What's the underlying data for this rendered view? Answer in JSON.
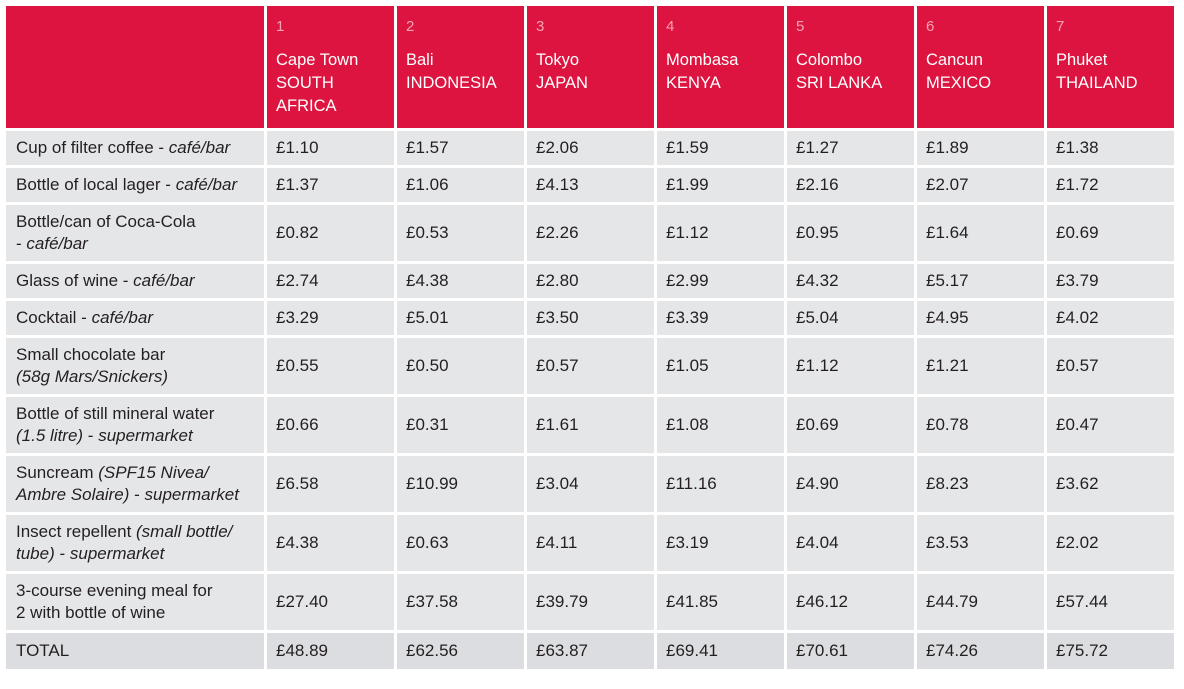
{
  "columns": [
    {
      "num": "1",
      "city": "Cape Town",
      "country": "SOUTH AFRICA"
    },
    {
      "num": "2",
      "city": "Bali",
      "country": "INDONESIA"
    },
    {
      "num": "3",
      "city": "Tokyo",
      "country": "JAPAN"
    },
    {
      "num": "4",
      "city": "Mombasa",
      "country": "KENYA"
    },
    {
      "num": "5",
      "city": "Colombo",
      "country": "SRI LANKA"
    },
    {
      "num": "6",
      "city": "Cancun",
      "country": "MEXICO"
    },
    {
      "num": "7",
      "city": "Phuket",
      "country": "THAILAND"
    }
  ],
  "rows": [
    {
      "parts": [
        {
          "t": "Cup of filter coffee - "
        },
        {
          "t": "café/bar",
          "i": true
        }
      ],
      "values": [
        "£1.10",
        "£1.57",
        "£2.06",
        "£1.59",
        "£1.27",
        "£1.89",
        "£1.38"
      ]
    },
    {
      "parts": [
        {
          "t": "Bottle of local lager - "
        },
        {
          "t": "café/bar",
          "i": true
        }
      ],
      "values": [
        "£1.37",
        "£1.06",
        "£4.13",
        "£1.99",
        "£2.16",
        "£2.07",
        "£1.72"
      ]
    },
    {
      "parts": [
        {
          "t": "Bottle/can of Coca-Cola"
        },
        {
          "br": true
        },
        {
          "t": "- "
        },
        {
          "t": "café/bar",
          "i": true
        }
      ],
      "values": [
        "£0.82",
        "£0.53",
        "£2.26",
        "£1.12",
        "£0.95",
        "£1.64",
        "£0.69"
      ]
    },
    {
      "parts": [
        {
          "t": "Glass of wine - "
        },
        {
          "t": "café/bar",
          "i": true
        }
      ],
      "values": [
        "£2.74",
        "£4.38",
        "£2.80",
        "£2.99",
        "£4.32",
        "£5.17",
        "£3.79"
      ]
    },
    {
      "parts": [
        {
          "t": "Cocktail - "
        },
        {
          "t": "café/bar",
          "i": true
        }
      ],
      "values": [
        "£3.29",
        "£5.01",
        "£3.50",
        "£3.39",
        "£5.04",
        "£4.95",
        "£4.02"
      ]
    },
    {
      "parts": [
        {
          "t": "Small chocolate bar"
        },
        {
          "br": true
        },
        {
          "t": "(58g Mars/Snickers)",
          "i": true
        }
      ],
      "values": [
        "£0.55",
        "£0.50",
        "£0.57",
        "£1.05",
        "£1.12",
        "£1.21",
        "£0.57"
      ]
    },
    {
      "parts": [
        {
          "t": "Bottle of still mineral water"
        },
        {
          "br": true
        },
        {
          "t": "(1.5 litre)",
          "i": true
        },
        {
          "t": " - "
        },
        {
          "t": "supermarket",
          "i": true
        }
      ],
      "values": [
        "£0.66",
        "£0.31",
        "£1.61",
        "£1.08",
        "£0.69",
        "£0.78",
        "£0.47"
      ]
    },
    {
      "parts": [
        {
          "t": "Suncream "
        },
        {
          "t": "(SPF15 Nivea/",
          "i": true
        },
        {
          "br": true
        },
        {
          "t": "Ambre Solaire)",
          "i": true
        },
        {
          "t": " - "
        },
        {
          "t": "supermarket",
          "i": true
        }
      ],
      "values": [
        "£6.58",
        "£10.99",
        "£3.04",
        "£11.16",
        "£4.90",
        "£8.23",
        "£3.62"
      ]
    },
    {
      "parts": [
        {
          "t": "Insect repellent "
        },
        {
          "t": "(small bottle/",
          "i": true
        },
        {
          "br": true
        },
        {
          "t": "tube)",
          "i": true
        },
        {
          "t": " - "
        },
        {
          "t": "supermarket",
          "i": true
        }
      ],
      "values": [
        "£4.38",
        "£0.63",
        "£4.11",
        "£3.19",
        "£4.04",
        "£3.53",
        "£2.02"
      ]
    },
    {
      "parts": [
        {
          "t": "3-course evening meal for"
        },
        {
          "br": true
        },
        {
          "t": "2 with bottle of wine"
        }
      ],
      "values": [
        "£27.40",
        "£37.58",
        "£39.79",
        "£41.85",
        "£46.12",
        "£44.79",
        "£57.44"
      ]
    }
  ],
  "total": {
    "label": "TOTAL",
    "values": [
      "£48.89",
      "£62.56",
      "£63.87",
      "£69.41",
      "£70.61",
      "£74.26",
      "£75.72"
    ]
  },
  "colors": {
    "header": "#dc143f",
    "cell": "#e5e6e8",
    "text": "#231f20"
  }
}
